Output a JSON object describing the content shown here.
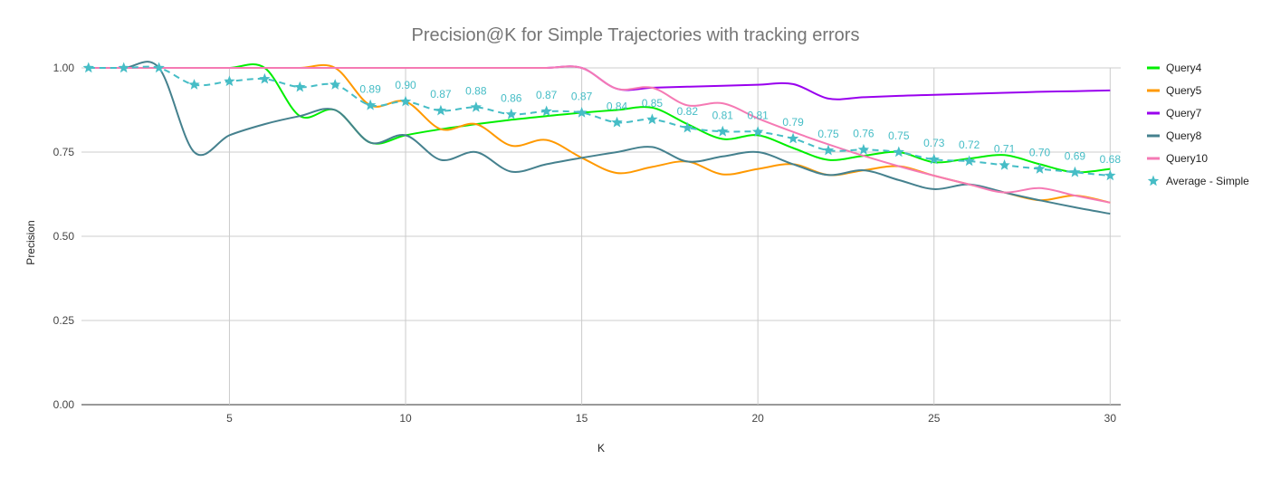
{
  "chart_data": {
    "type": "line",
    "title": "Precision@K for Simple Trajectories with tracking errors",
    "xlabel": "K",
    "ylabel": "Precision",
    "xlim": [
      0.8,
      30.3
    ],
    "ylim": [
      0,
      1
    ],
    "x_ticks": [
      5,
      10,
      15,
      20,
      25,
      30
    ],
    "x_tick_labels": [
      "5",
      "10",
      "15",
      "20",
      "25",
      "30"
    ],
    "y_ticks": [
      0,
      0.25,
      0.5,
      0.75,
      1.0
    ],
    "y_tick_labels": [
      "0.00",
      "0.25",
      "0.50",
      "0.75",
      "1.00"
    ],
    "grid": true,
    "legend_position": "right",
    "x": [
      1,
      2,
      3,
      4,
      5,
      6,
      7,
      8,
      9,
      10,
      11,
      12,
      13,
      14,
      15,
      16,
      17,
      18,
      19,
      20,
      21,
      22,
      23,
      24,
      25,
      26,
      27,
      28,
      29,
      30
    ],
    "series": [
      {
        "name": "Query4",
        "color": "#00EE00",
        "style": "solid",
        "values": [
          1,
          1,
          1,
          1,
          1,
          1,
          0.857,
          0.875,
          0.778,
          0.8,
          0.818,
          0.833,
          0.846,
          0.857,
          0.867,
          0.875,
          0.882,
          0.833,
          0.789,
          0.8,
          0.762,
          0.727,
          0.739,
          0.75,
          0.72,
          0.731,
          0.741,
          0.714,
          0.69,
          0.7
        ]
      },
      {
        "name": "Query5",
        "color": "#FF9900",
        "style": "solid",
        "values": [
          1,
          1,
          1,
          1,
          1,
          1,
          1,
          1,
          0.889,
          0.9,
          0.818,
          0.833,
          0.769,
          0.786,
          0.733,
          0.688,
          0.706,
          0.722,
          0.684,
          0.7,
          0.714,
          0.682,
          0.696,
          0.708,
          0.68,
          0.654,
          0.63,
          0.607,
          0.621,
          0.6
        ]
      },
      {
        "name": "Query7",
        "color": "#9900EE",
        "style": "solid",
        "values": [
          1,
          1,
          1,
          1,
          1,
          1,
          1,
          1,
          1,
          1,
          1,
          1,
          1,
          1,
          1,
          0.938,
          0.941,
          0.944,
          0.947,
          0.95,
          0.952,
          0.909,
          0.913,
          0.917,
          0.92,
          0.923,
          0.926,
          0.929,
          0.931,
          0.933
        ]
      },
      {
        "name": "Query8",
        "color": "#45818E",
        "style": "solid",
        "values": [
          1,
          1,
          1,
          0.75,
          0.8,
          0.833,
          0.857,
          0.875,
          0.778,
          0.8,
          0.727,
          0.75,
          0.692,
          0.714,
          0.733,
          0.75,
          0.765,
          0.722,
          0.737,
          0.75,
          0.714,
          0.682,
          0.696,
          0.667,
          0.64,
          0.654,
          0.63,
          0.607,
          0.586,
          0.567
        ]
      },
      {
        "name": "Query10",
        "color": "#F57AB4",
        "style": "solid",
        "values": [
          1,
          1,
          1,
          1,
          1,
          1,
          1,
          1,
          1,
          1,
          1,
          1,
          1,
          1,
          1,
          0.938,
          0.941,
          0.889,
          0.895,
          0.85,
          0.81,
          0.773,
          0.739,
          0.708,
          0.68,
          0.654,
          0.63,
          0.643,
          0.621,
          0.6
        ]
      },
      {
        "name": "Average - Simple",
        "color": "#46BDC6",
        "style": "dashed",
        "marker": "star",
        "values": [
          1,
          1,
          1,
          0.95,
          0.96,
          0.967,
          0.943,
          0.95,
          0.889,
          0.9,
          0.873,
          0.883,
          0.862,
          0.871,
          0.867,
          0.838,
          0.847,
          0.822,
          0.811,
          0.81,
          0.79,
          0.755,
          0.757,
          0.75,
          0.728,
          0.723,
          0.711,
          0.7,
          0.69,
          0.68
        ],
        "data_labels": {
          "9": "0.89",
          "10": "0.90",
          "11": "0.87",
          "12": "0.88",
          "13": "0.86",
          "14": "0.87",
          "15": "0.87",
          "16": "0.84",
          "17": "0.85",
          "18": "0.82",
          "19": "0.81",
          "20": "0.81",
          "21": "0.79",
          "22": "0.75",
          "23": "0.76",
          "24": "0.75",
          "25": "0.73",
          "26": "0.72",
          "27": "0.71",
          "28": "0.70",
          "29": "0.69",
          "30": "0.68"
        }
      }
    ]
  }
}
